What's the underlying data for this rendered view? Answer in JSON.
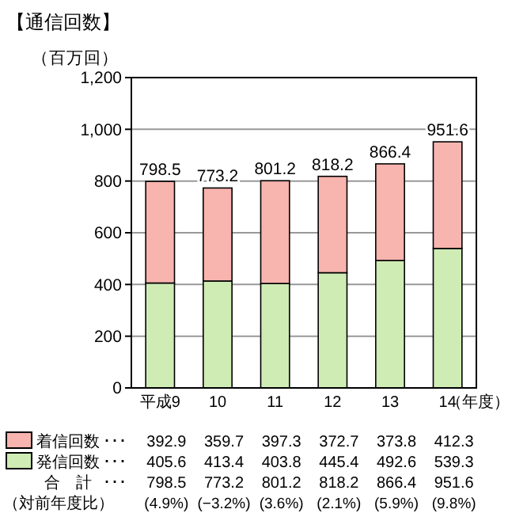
{
  "chart_data": {
    "type": "bar",
    "stacked": true,
    "title": "【通信回数】",
    "ylabel": "（百万回）",
    "xlabel": "（年度）",
    "categories": [
      "平成9",
      "10",
      "11",
      "12",
      "13",
      "14"
    ],
    "series": [
      {
        "name": "発信回数",
        "color": "#cfecb5",
        "values": [
          405.6,
          413.4,
          403.8,
          445.4,
          492.6,
          539.3
        ]
      },
      {
        "name": "着信回数",
        "color": "#f8b4ae",
        "values": [
          392.9,
          359.7,
          397.3,
          372.7,
          373.8,
          412.3
        ]
      }
    ],
    "totals": [
      "798.5",
      "773.2",
      "801.2",
      "818.2",
      "866.4",
      "951.6"
    ],
    "annotations": [
      "合　計",
      "（対前年度比）",
      "･･･",
      "(4.9%)",
      "(−3.2%)",
      "(3.6%)",
      "(2.1%)",
      "(5.9%)",
      "(9.8%)"
    ],
    "ylim": [
      0,
      1200
    ],
    "yticks": [
      0,
      200,
      400,
      600,
      800,
      {
        "value": 1000,
        "label": "1,000"
      },
      {
        "value": 1200,
        "label": "1,200"
      }
    ],
    "grid": "y",
    "data_labels": true,
    "legend": "bottom"
  }
}
